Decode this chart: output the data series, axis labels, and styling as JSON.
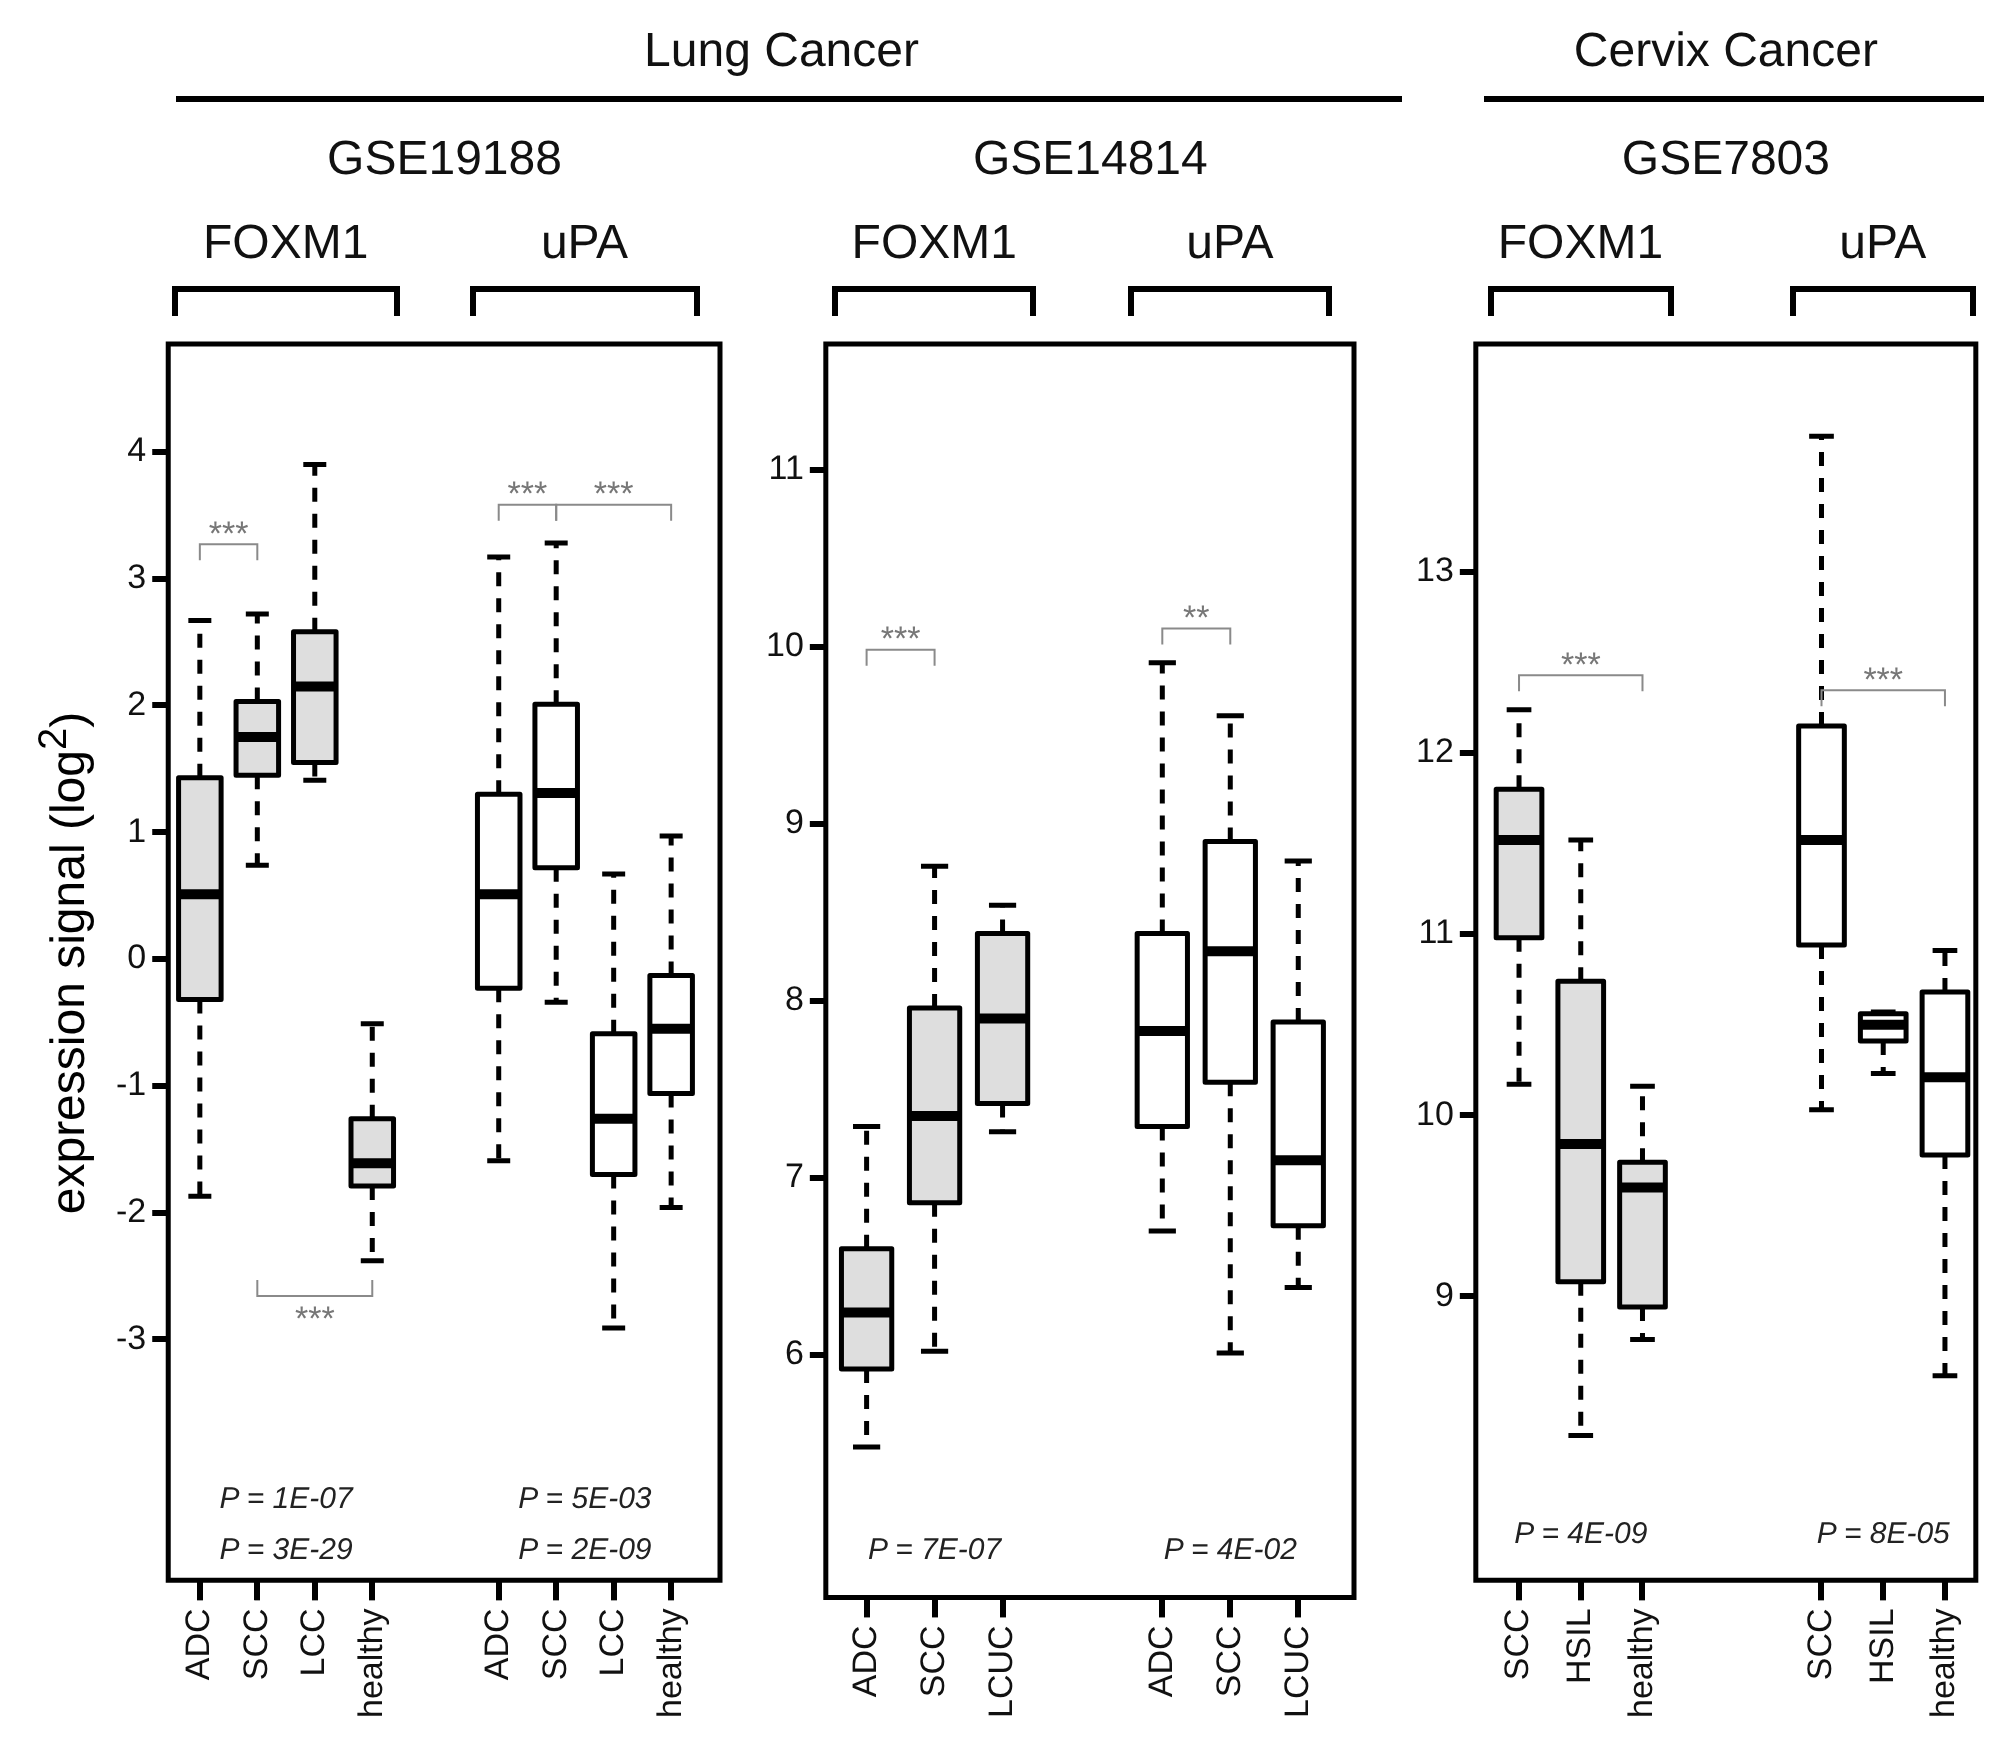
{
  "chart_data": [
    {
      "type": "box",
      "subtitle": "Lung Cancer",
      "title": "GSE19188",
      "ylabel": "expression signal  (log$^{2}$)",
      "categories": [
        "ADC",
        "SCC",
        "LCC",
        "healthy",
        "ADC",
        "SCC",
        "LCC",
        "healthy"
      ],
      "series": [
        {
          "color": "#dedede",
          "boxes": [
            {
              "low": -1.87,
              "q1": -0.32,
              "median": 0.51,
              "q3": 1.43,
              "high": 2.67
            },
            {
              "low": 0.74,
              "q1": 1.45,
              "median": 1.75,
              "q3": 2.03,
              "high": 2.72
            },
            {
              "low": 1.41,
              "q1": 1.55,
              "median": 2.15,
              "q3": 2.58,
              "high": 3.9
            },
            {
              "low": -2.38,
              "q1": -1.79,
              "median": -1.61,
              "q3": -1.26,
              "high": -0.51
            },
            null,
            null,
            null,
            null
          ]
        },
        {
          "color": "#ffffff",
          "boxes": [
            null,
            null,
            null,
            null,
            {
              "low": -1.59,
              "q1": -0.23,
              "median": 0.51,
              "q3": 1.3,
              "high": 3.17
            },
            {
              "low": -0.34,
              "q1": 0.72,
              "median": 1.31,
              "q3": 2.01,
              "high": 3.28
            },
            {
              "low": -2.91,
              "q1": -1.7,
              "median": -1.26,
              "q3": -0.59,
              "high": 0.67
            },
            {
              "low": -1.96,
              "q1": -1.06,
              "median": -0.55,
              "q3": -0.13,
              "high": 0.97
            }
          ]
        }
      ],
      "ylim": [
        -4.9,
        4.85
      ],
      "yticks": [
        -3,
        -2,
        -1,
        0,
        1,
        2,
        3,
        4
      ],
      "annotations": [
        "FOXM1",
        "uPA",
        "***",
        "***",
        "***",
        "***",
        "P = 1E-07",
        "P = 3E-29",
        "P = 5E-03",
        "P = 2E-09"
      ]
    },
    {
      "type": "box",
      "title": "GSE14814",
      "categories": [
        "ADC",
        "SCC",
        "LCUC",
        "ADC",
        "SCC",
        "LCUC"
      ],
      "series": [
        {
          "color": "#dedede",
          "boxes": [
            {
              "low": 5.48,
              "q1": 5.92,
              "median": 6.24,
              "q3": 6.6,
              "high": 7.29
            },
            {
              "low": 6.02,
              "q1": 6.86,
              "median": 7.35,
              "q3": 7.96,
              "high": 8.76
            },
            {
              "low": 7.26,
              "q1": 7.42,
              "median": 7.9,
              "q3": 8.38,
              "high": 8.54
            },
            null,
            null,
            null
          ]
        },
        {
          "color": "#ffffff",
          "boxes": [
            null,
            null,
            null,
            {
              "low": 6.7,
              "q1": 7.29,
              "median": 7.83,
              "q3": 8.38,
              "high": 9.91
            },
            {
              "low": 6.01,
              "q1": 7.54,
              "median": 8.28,
              "q3": 8.9,
              "high": 9.61
            },
            {
              "low": 6.38,
              "q1": 6.73,
              "median": 7.1,
              "q3": 7.88,
              "high": 8.79
            }
          ]
        }
      ],
      "ylim": [
        4.63,
        11.71
      ],
      "yticks": [
        6,
        7,
        8,
        9,
        10,
        11
      ],
      "annotations": [
        "FOXM1",
        "uPA",
        "***",
        "**",
        "P = 7E-07",
        "P = 4E-02"
      ]
    },
    {
      "type": "box",
      "subtitle": "Cervix Cancer",
      "title": "GSE7803",
      "categories": [
        "SCC",
        "HSIL",
        "healthy",
        "SCC",
        "HSIL",
        "healthy"
      ],
      "series": [
        {
          "color": "#dedede",
          "boxes": [
            {
              "low": 10.17,
              "q1": 10.98,
              "median": 11.52,
              "q3": 11.8,
              "high": 12.24
            },
            {
              "low": 8.23,
              "q1": 9.08,
              "median": 9.84,
              "q3": 10.74,
              "high": 11.52
            },
            {
              "low": 8.76,
              "q1": 8.94,
              "median": 9.6,
              "q3": 9.74,
              "high": 10.16
            },
            null,
            null,
            null
          ]
        },
        {
          "color": "#ffffff",
          "boxes": [
            null,
            null,
            null,
            {
              "low": 10.03,
              "q1": 10.94,
              "median": 11.52,
              "q3": 12.15,
              "high": 13.75
            },
            {
              "low": 10.23,
              "q1": 10.41,
              "median": 10.5,
              "q3": 10.56,
              "high": 10.57
            },
            {
              "low": 8.56,
              "q1": 9.78,
              "median": 10.21,
              "q3": 10.68,
              "high": 10.91
            }
          ]
        }
      ],
      "ylim": [
        7.43,
        14.26
      ],
      "yticks": [
        9,
        10,
        11,
        12,
        13
      ],
      "annotations": [
        "FOXM1",
        "uPA",
        "***",
        "***",
        "P = 4E-09",
        "P = 8E-05"
      ]
    }
  ]
}
